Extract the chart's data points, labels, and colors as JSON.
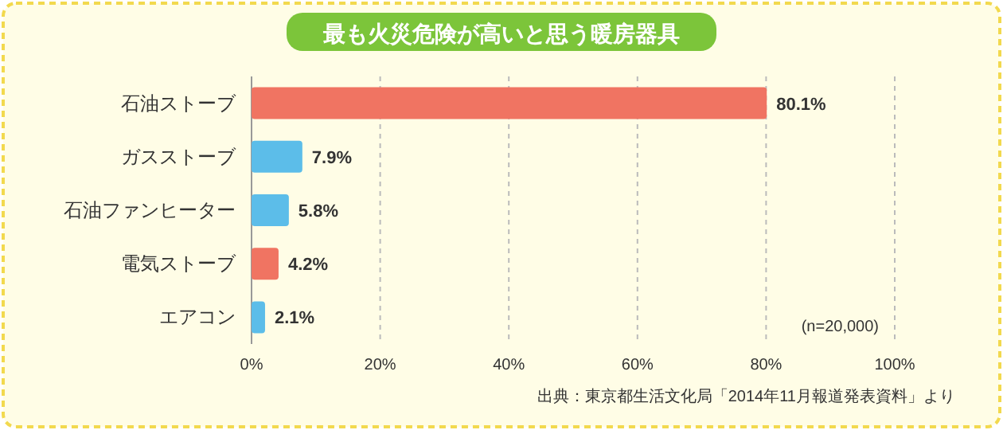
{
  "chart_data": {
    "type": "bar",
    "orientation": "horizontal",
    "title": "最も火災危険が高いと思う暖房器具",
    "categories": [
      "石油ストーブ",
      "ガスストーブ",
      "石油ファンヒーター",
      "電気ストーブ",
      "エアコン"
    ],
    "values": [
      80.1,
      7.9,
      5.8,
      4.2,
      2.1
    ],
    "colors": [
      "#f07462",
      "#5cbde9",
      "#5cbde9",
      "#f07462",
      "#5cbde9"
    ],
    "value_labels": [
      "80.1%",
      "7.9%",
      "5.8%",
      "4.2%",
      "2.1%"
    ],
    "xlim": [
      0,
      100
    ],
    "xticks": [
      {
        "value": 0,
        "label": "0%"
      },
      {
        "value": 20,
        "label": "20%"
      },
      {
        "value": 40,
        "label": "40%"
      },
      {
        "value": 60,
        "label": "60%"
      },
      {
        "value": 80,
        "label": "80%"
      },
      {
        "value": 100,
        "label": "100%"
      }
    ],
    "grid": "x",
    "annotations": [
      "(n=20,000)",
      "出典：東京都生活文化局「2014年11月報道発表資料」より"
    ]
  }
}
